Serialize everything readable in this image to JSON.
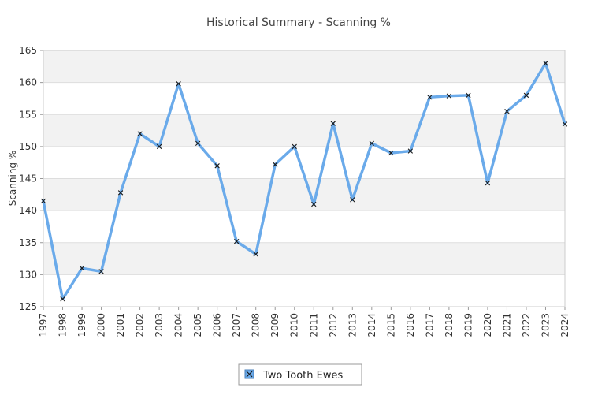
{
  "chart_data": {
    "type": "line",
    "title": "Historical Summary - Scanning %",
    "xlabel": "",
    "ylabel": "Scanning %",
    "ylim": [
      125,
      165
    ],
    "yticks": [
      125,
      130,
      135,
      140,
      145,
      150,
      155,
      160,
      165
    ],
    "grid": "horizontal bands",
    "legend_position": "bottom-center",
    "categories": [
      "1997",
      "1998",
      "1999",
      "2000",
      "2001",
      "2002",
      "2003",
      "2004",
      "2005",
      "2006",
      "2007",
      "2008",
      "2009",
      "2010",
      "2011",
      "2012",
      "2013",
      "2014",
      "2015",
      "2016",
      "2017",
      "2018",
      "2019",
      "2020",
      "2021",
      "2022",
      "2023",
      "2024"
    ],
    "series": [
      {
        "name": "Two Tooth Ewes",
        "color": "#6aaaea",
        "values": [
          141.5,
          126.2,
          131.0,
          130.5,
          142.8,
          152.0,
          150.0,
          159.8,
          150.5,
          147.0,
          135.2,
          133.2,
          147.2,
          150.0,
          141.0,
          153.6,
          141.7,
          150.5,
          149.0,
          149.3,
          157.7,
          157.9,
          158.0,
          144.3,
          155.5,
          158.0,
          163.0,
          153.5
        ]
      }
    ]
  }
}
